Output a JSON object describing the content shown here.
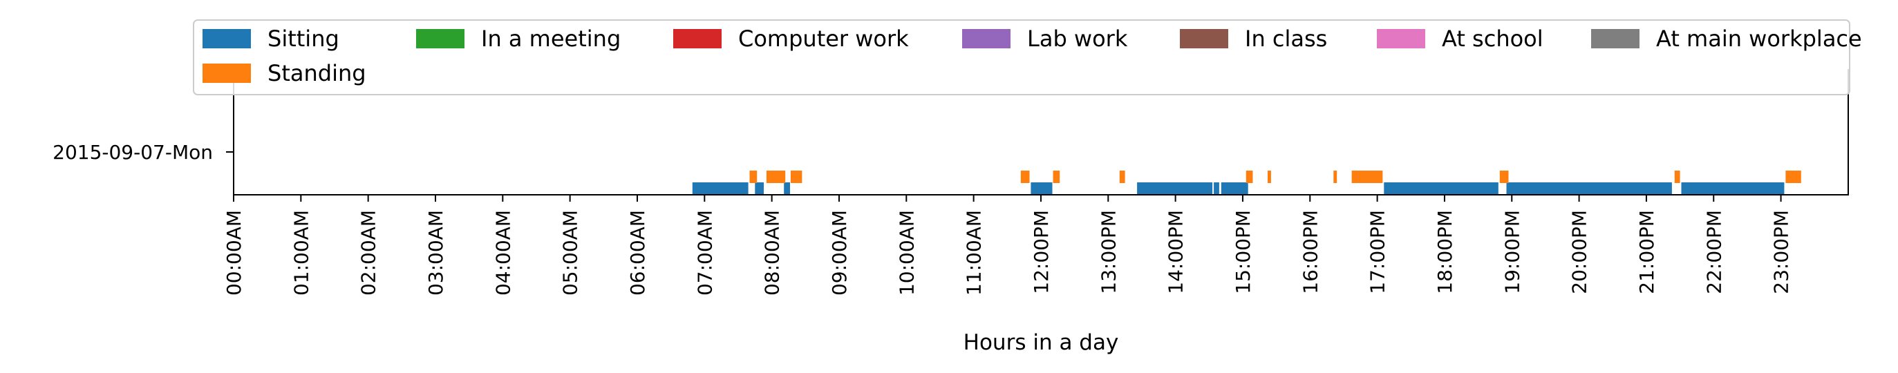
{
  "chart_data": {
    "type": "timeline",
    "xlabel": "Hours in a day",
    "xticks": [
      "00:00AM",
      "01:00AM",
      "02:00AM",
      "03:00AM",
      "04:00AM",
      "05:00AM",
      "06:00AM",
      "07:00AM",
      "08:00AM",
      "09:00AM",
      "10:00AM",
      "11:00AM",
      "12:00PM",
      "13:00PM",
      "14:00PM",
      "15:00PM",
      "16:00PM",
      "17:00PM",
      "18:00PM",
      "19:00PM",
      "20:00PM",
      "21:00PM",
      "22:00PM",
      "23:00PM"
    ],
    "xlim_hours": [
      0,
      24
    ],
    "rows": [
      "2015-09-07-Mon"
    ],
    "legend_placement": "top",
    "series": [
      {
        "name": "Sitting",
        "color": "#1f77b4",
        "intervals_hours": [
          [
            6.82,
            7.65
          ],
          [
            7.75,
            7.88
          ],
          [
            8.18,
            8.27
          ],
          [
            11.85,
            12.17
          ],
          [
            13.43,
            14.55
          ],
          [
            14.57,
            14.65
          ],
          [
            14.68,
            15.08
          ],
          [
            17.1,
            18.8
          ],
          [
            18.92,
            21.38
          ],
          [
            21.52,
            23.05
          ]
        ]
      },
      {
        "name": "Standing",
        "color": "#ff7f0e",
        "intervals_hours": [
          [
            7.67,
            7.78
          ],
          [
            7.92,
            8.2
          ],
          [
            8.28,
            8.45
          ],
          [
            11.7,
            11.83
          ],
          [
            12.18,
            12.28
          ],
          [
            13.17,
            13.25
          ],
          [
            15.05,
            15.15
          ],
          [
            15.37,
            15.42
          ],
          [
            16.35,
            16.4
          ],
          [
            16.62,
            17.08
          ],
          [
            18.82,
            18.95
          ],
          [
            21.42,
            21.5
          ],
          [
            23.07,
            23.3
          ]
        ]
      },
      {
        "name": "In a meeting",
        "color": "#2ca02c",
        "intervals_hours": []
      },
      {
        "name": "Computer work",
        "color": "#d62728",
        "intervals_hours": []
      },
      {
        "name": "Lab work",
        "color": "#9467bd",
        "intervals_hours": []
      },
      {
        "name": "In class",
        "color": "#8c564b",
        "intervals_hours": []
      },
      {
        "name": "At school",
        "color": "#e377c2",
        "intervals_hours": []
      },
      {
        "name": "At main workplace",
        "color": "#7f7f7f",
        "intervals_hours": []
      }
    ]
  }
}
